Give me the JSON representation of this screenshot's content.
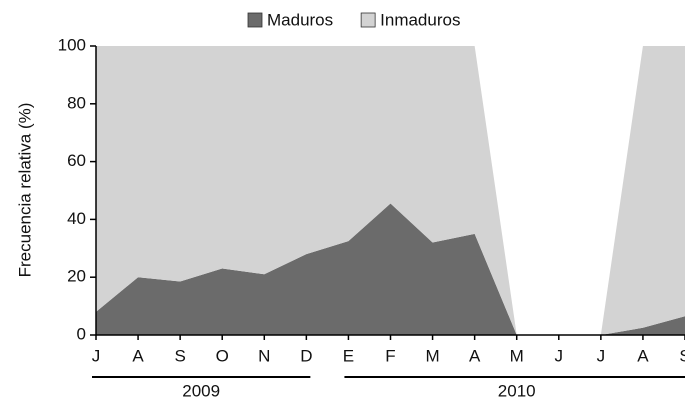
{
  "chart_data": {
    "type": "stacked_area",
    "y_label": "Frecuencia relativa (%)",
    "categories": [
      "J",
      "A",
      "S",
      "O",
      "N",
      "D",
      "E",
      "F",
      "M",
      "A",
      "M",
      "J",
      "J",
      "A",
      "S"
    ],
    "series": [
      {
        "name": "Maduros",
        "color": "#6b6b6b",
        "values": [
          8,
          20,
          18.5,
          23,
          21,
          28,
          32.5,
          45.5,
          32,
          35,
          0,
          0,
          0,
          2.5,
          6.5
        ]
      },
      {
        "name": "Inmaduros",
        "color": "#d3d3d3",
        "values": [
          92,
          80,
          81.5,
          77,
          79,
          72,
          67.5,
          54.5,
          68,
          65,
          0,
          0,
          0,
          97.5,
          93.5
        ]
      }
    ],
    "x_groups": [
      {
        "label": "2009",
        "start": 0,
        "end": 5
      },
      {
        "label": "2010",
        "start": 6,
        "end": 14
      }
    ],
    "ylim": [
      0,
      100
    ],
    "yticks": [
      0,
      20,
      40,
      60,
      80,
      100
    ],
    "grid": false,
    "legend": "top"
  }
}
